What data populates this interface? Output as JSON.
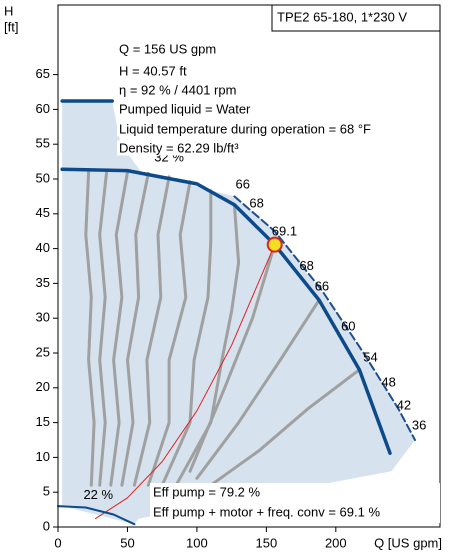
{
  "chart_data": {
    "type": "line",
    "title": "TPE2 65-180, 1*230 V",
    "y_label": "H",
    "y_unit": "[ft]",
    "x_label": "Q [US gpm]",
    "xlim": [
      0,
      275
    ],
    "ylim": [
      0,
      75
    ],
    "xticks": [
      0,
      50,
      100,
      150,
      200
    ],
    "yticks": [
      0,
      5,
      10,
      15,
      20,
      25,
      30,
      35,
      40,
      45,
      50,
      55,
      60,
      65
    ],
    "info": [
      "Q = 156 US gpm",
      "H = 40.57 ft",
      "η = 92 % / 4401 rpm",
      "Pumped liquid = Water",
      "Liquid temperature during operation = 68 °F",
      "Density = 62.29 lb/ft³"
    ],
    "footer": [
      "Eff pump = 79.2 %",
      "Eff pump + motor + freq. conv = 69.1 %"
    ],
    "series": [
      {
        "style": "area",
        "color": "#d6e2ee",
        "x": [
          3,
          39,
          45,
          60,
          127,
          156,
          200,
          245,
          257,
          240,
          58,
          55,
          3
        ],
        "values": [
          61.2,
          61.2,
          55,
          51,
          47.5,
          42.5,
          31,
          17,
          12.5,
          8,
          1.2,
          0.4,
          3
        ]
      },
      {
        "style": "contour",
        "color": "#a0a0a0",
        "x": [
          22,
          20,
          24,
          22,
          26,
          24
        ],
        "values": [
          51,
          42,
          33,
          24,
          15,
          6
        ]
      },
      {
        "style": "contour",
        "color": "#a0a0a0",
        "x": [
          35,
          30,
          34,
          30,
          34,
          30
        ],
        "values": [
          51,
          42,
          33,
          24,
          15,
          6
        ]
      },
      {
        "style": "contour",
        "color": "#a0a0a0",
        "x": [
          50,
          42,
          46,
          40,
          44,
          38
        ],
        "values": [
          51,
          42,
          33,
          24,
          15,
          6
        ]
      },
      {
        "style": "contour",
        "color": "#a0a0a0",
        "x": [
          65,
          56,
          58,
          50,
          54,
          46
        ],
        "values": [
          50.8,
          42,
          33,
          24,
          15,
          6
        ]
      },
      {
        "style": "contour",
        "color": "#a0a0a0",
        "x": [
          80,
          72,
          74,
          64,
          66,
          55
        ],
        "values": [
          50.3,
          42,
          33,
          24,
          15,
          6
        ]
      },
      {
        "style": "contour",
        "color": "#a0a0a0",
        "x": [
          95,
          88,
          92,
          80,
          80,
          65
        ],
        "values": [
          49.6,
          42,
          33,
          24,
          15,
          6
        ]
      },
      {
        "style": "contour",
        "color": "#a0a0a0",
        "x": [
          110,
          110,
          108,
          98,
          95,
          75
        ],
        "values": [
          48.3,
          41,
          33,
          24,
          15,
          6
        ]
      },
      {
        "style": "contour",
        "color": "#a0a0a0",
        "x": [
          127,
          130,
          125,
          118,
          110,
          85
        ],
        "values": [
          46.3,
          38,
          31,
          24,
          15,
          6
        ]
      },
      {
        "style": "contour",
        "color": "#a0a0a0",
        "x": [
          156,
          140,
          120,
          95
        ],
        "values": [
          40.57,
          30,
          20,
          8
        ]
      },
      {
        "style": "contour",
        "color": "#a0a0a0",
        "x": [
          188,
          160,
          130,
          100
        ],
        "values": [
          32.6,
          24,
          15,
          7
        ]
      },
      {
        "style": "contour",
        "color": "#a0a0a0",
        "x": [
          217,
          180,
          145,
          110
        ],
        "values": [
          22.6,
          17,
          11,
          6
        ]
      },
      {
        "style": "thin",
        "color": "#e02020",
        "x": [
          27,
          50,
          75,
          100,
          125,
          156
        ],
        "values": [
          1.2,
          4.2,
          9.4,
          16.7,
          26.1,
          40.57
        ]
      },
      {
        "style": "dashed",
        "color": "#1f4e8c",
        "x": [
          127,
          156,
          190,
          220,
          245,
          257
        ],
        "values": [
          47.5,
          42.5,
          34,
          25,
          17,
          12.5
        ]
      },
      {
        "style": "bold",
        "color": "#0d4a8a",
        "x": [
          3,
          39
        ],
        "values": [
          61.2,
          61.2
        ]
      },
      {
        "style": "bold",
        "color": "#0d4a8a",
        "x": [
          3,
          50,
          100,
          127,
          156,
          188,
          217,
          239
        ],
        "values": [
          51.4,
          51.2,
          49.3,
          46.3,
          40.57,
          32.6,
          22.6,
          10.6
        ]
      },
      {
        "style": "medium",
        "color": "#0d4a8a",
        "x": [
          0,
          20,
          40,
          55
        ],
        "values": [
          3,
          2.8,
          1.8,
          0.4
        ]
      }
    ],
    "marker": {
      "x": 156,
      "y": 40.57,
      "color": "#f0e020"
    },
    "annotations": [
      {
        "text": "32 %",
        "x": 80,
        "y": 53
      },
      {
        "text": "66",
        "x": 133,
        "y": 49.1
      },
      {
        "text": "68",
        "x": 143,
        "y": 46.4
      },
      {
        "text": "69.1",
        "x": 163,
        "y": 42.4
      },
      {
        "text": "68",
        "x": 179,
        "y": 37.4
      },
      {
        "text": "66",
        "x": 190,
        "y": 34.5
      },
      {
        "text": "60",
        "x": 209,
        "y": 28.7
      },
      {
        "text": "54",
        "x": 225,
        "y": 24.3
      },
      {
        "text": "48",
        "x": 238,
        "y": 20.7
      },
      {
        "text": "42",
        "x": 249,
        "y": 17.4
      },
      {
        "text": "36",
        "x": 260,
        "y": 14.5
      },
      {
        "text": "22 %",
        "x": 29,
        "y": 4.5
      }
    ]
  }
}
